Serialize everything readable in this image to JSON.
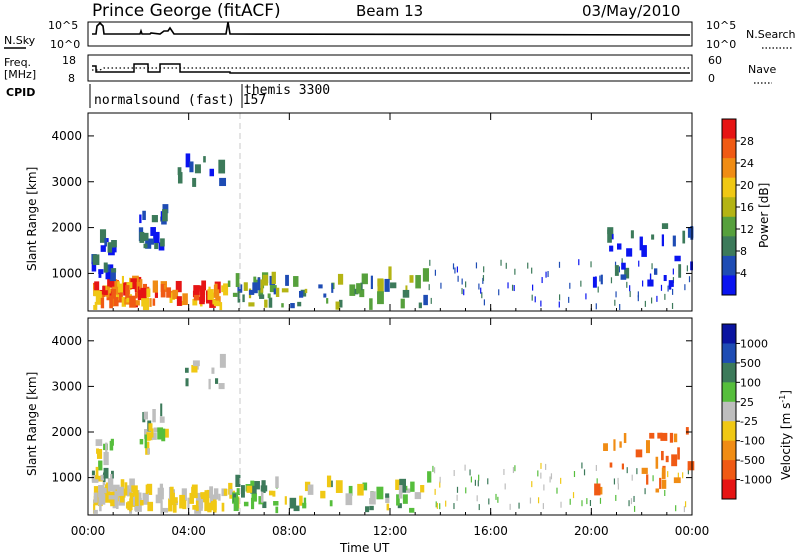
{
  "header": {
    "station": "Prince George (fitACF)",
    "beam": "Beam 13",
    "date": "03/May/2010"
  },
  "top_panels": {
    "nsky_label": "N.Sky",
    "nsky_ticks": [
      "10^5",
      "10^0"
    ],
    "nsearch_label": "N.Search",
    "nsearch_ticks": [
      "10^5",
      "10^0"
    ],
    "freq_label_1": "Freq.",
    "freq_label_2": "[MHz]",
    "freq_ticks": [
      "18",
      "8"
    ],
    "nave_label": "Nave",
    "nave_ticks": [
      "60",
      "0"
    ],
    "cpid_label": "CPID",
    "cpid_segments": [
      "normalsound (fast) 157",
      "themis 3300"
    ]
  },
  "colors": {
    "power": [
      "#0a14f0",
      "#1e4cb4",
      "#3c7a5a",
      "#56a03c",
      "#b4b414",
      "#f0c814",
      "#f08c14",
      "#f05a14",
      "#e61414"
    ],
    "velocity": [
      "#e61414",
      "#f05a14",
      "#f08c14",
      "#f0c814",
      "#bebebe",
      "#56be3c",
      "#3c7a5a",
      "#1e4cb4",
      "#0a14a0"
    ]
  },
  "chart_data": [
    {
      "type": "heatmap",
      "title": "Power",
      "ylabel": "Slant Range [km]",
      "xlabel": "Time UT",
      "y_ticks": [
        "1000",
        "2000",
        "3000",
        "4000"
      ],
      "x_ticks": [
        "00:00",
        "04:00",
        "08:00",
        "12:00",
        "16:00",
        "20:00",
        "00:00"
      ],
      "ylim": [
        180,
        4500
      ],
      "xlim_hours": [
        0,
        24
      ],
      "colorbar_label": "Power [dB]",
      "colorbar_ticks": [
        "4",
        "8",
        "12",
        "16",
        "20",
        "24",
        "28"
      ]
    },
    {
      "type": "heatmap",
      "title": "Velocity",
      "ylabel": "Slant Range [km]",
      "xlabel": "Time UT",
      "y_ticks": [
        "1000",
        "2000",
        "3000",
        "4000"
      ],
      "x_ticks": [
        "00:00",
        "04:00",
        "08:00",
        "12:00",
        "16:00",
        "20:00",
        "00:00"
      ],
      "ylim": [
        180,
        4500
      ],
      "xlim_hours": [
        0,
        24
      ],
      "colorbar_label": "Velocity [m s",
      "colorbar_label_sup": "-1",
      "colorbar_label_end": "]",
      "colorbar_ticks": [
        "1000",
        "500",
        "100",
        "25",
        "-25",
        "-100",
        "-500",
        "-1000"
      ]
    }
  ],
  "footer": {
    "xaxis_title": "Time UT"
  }
}
